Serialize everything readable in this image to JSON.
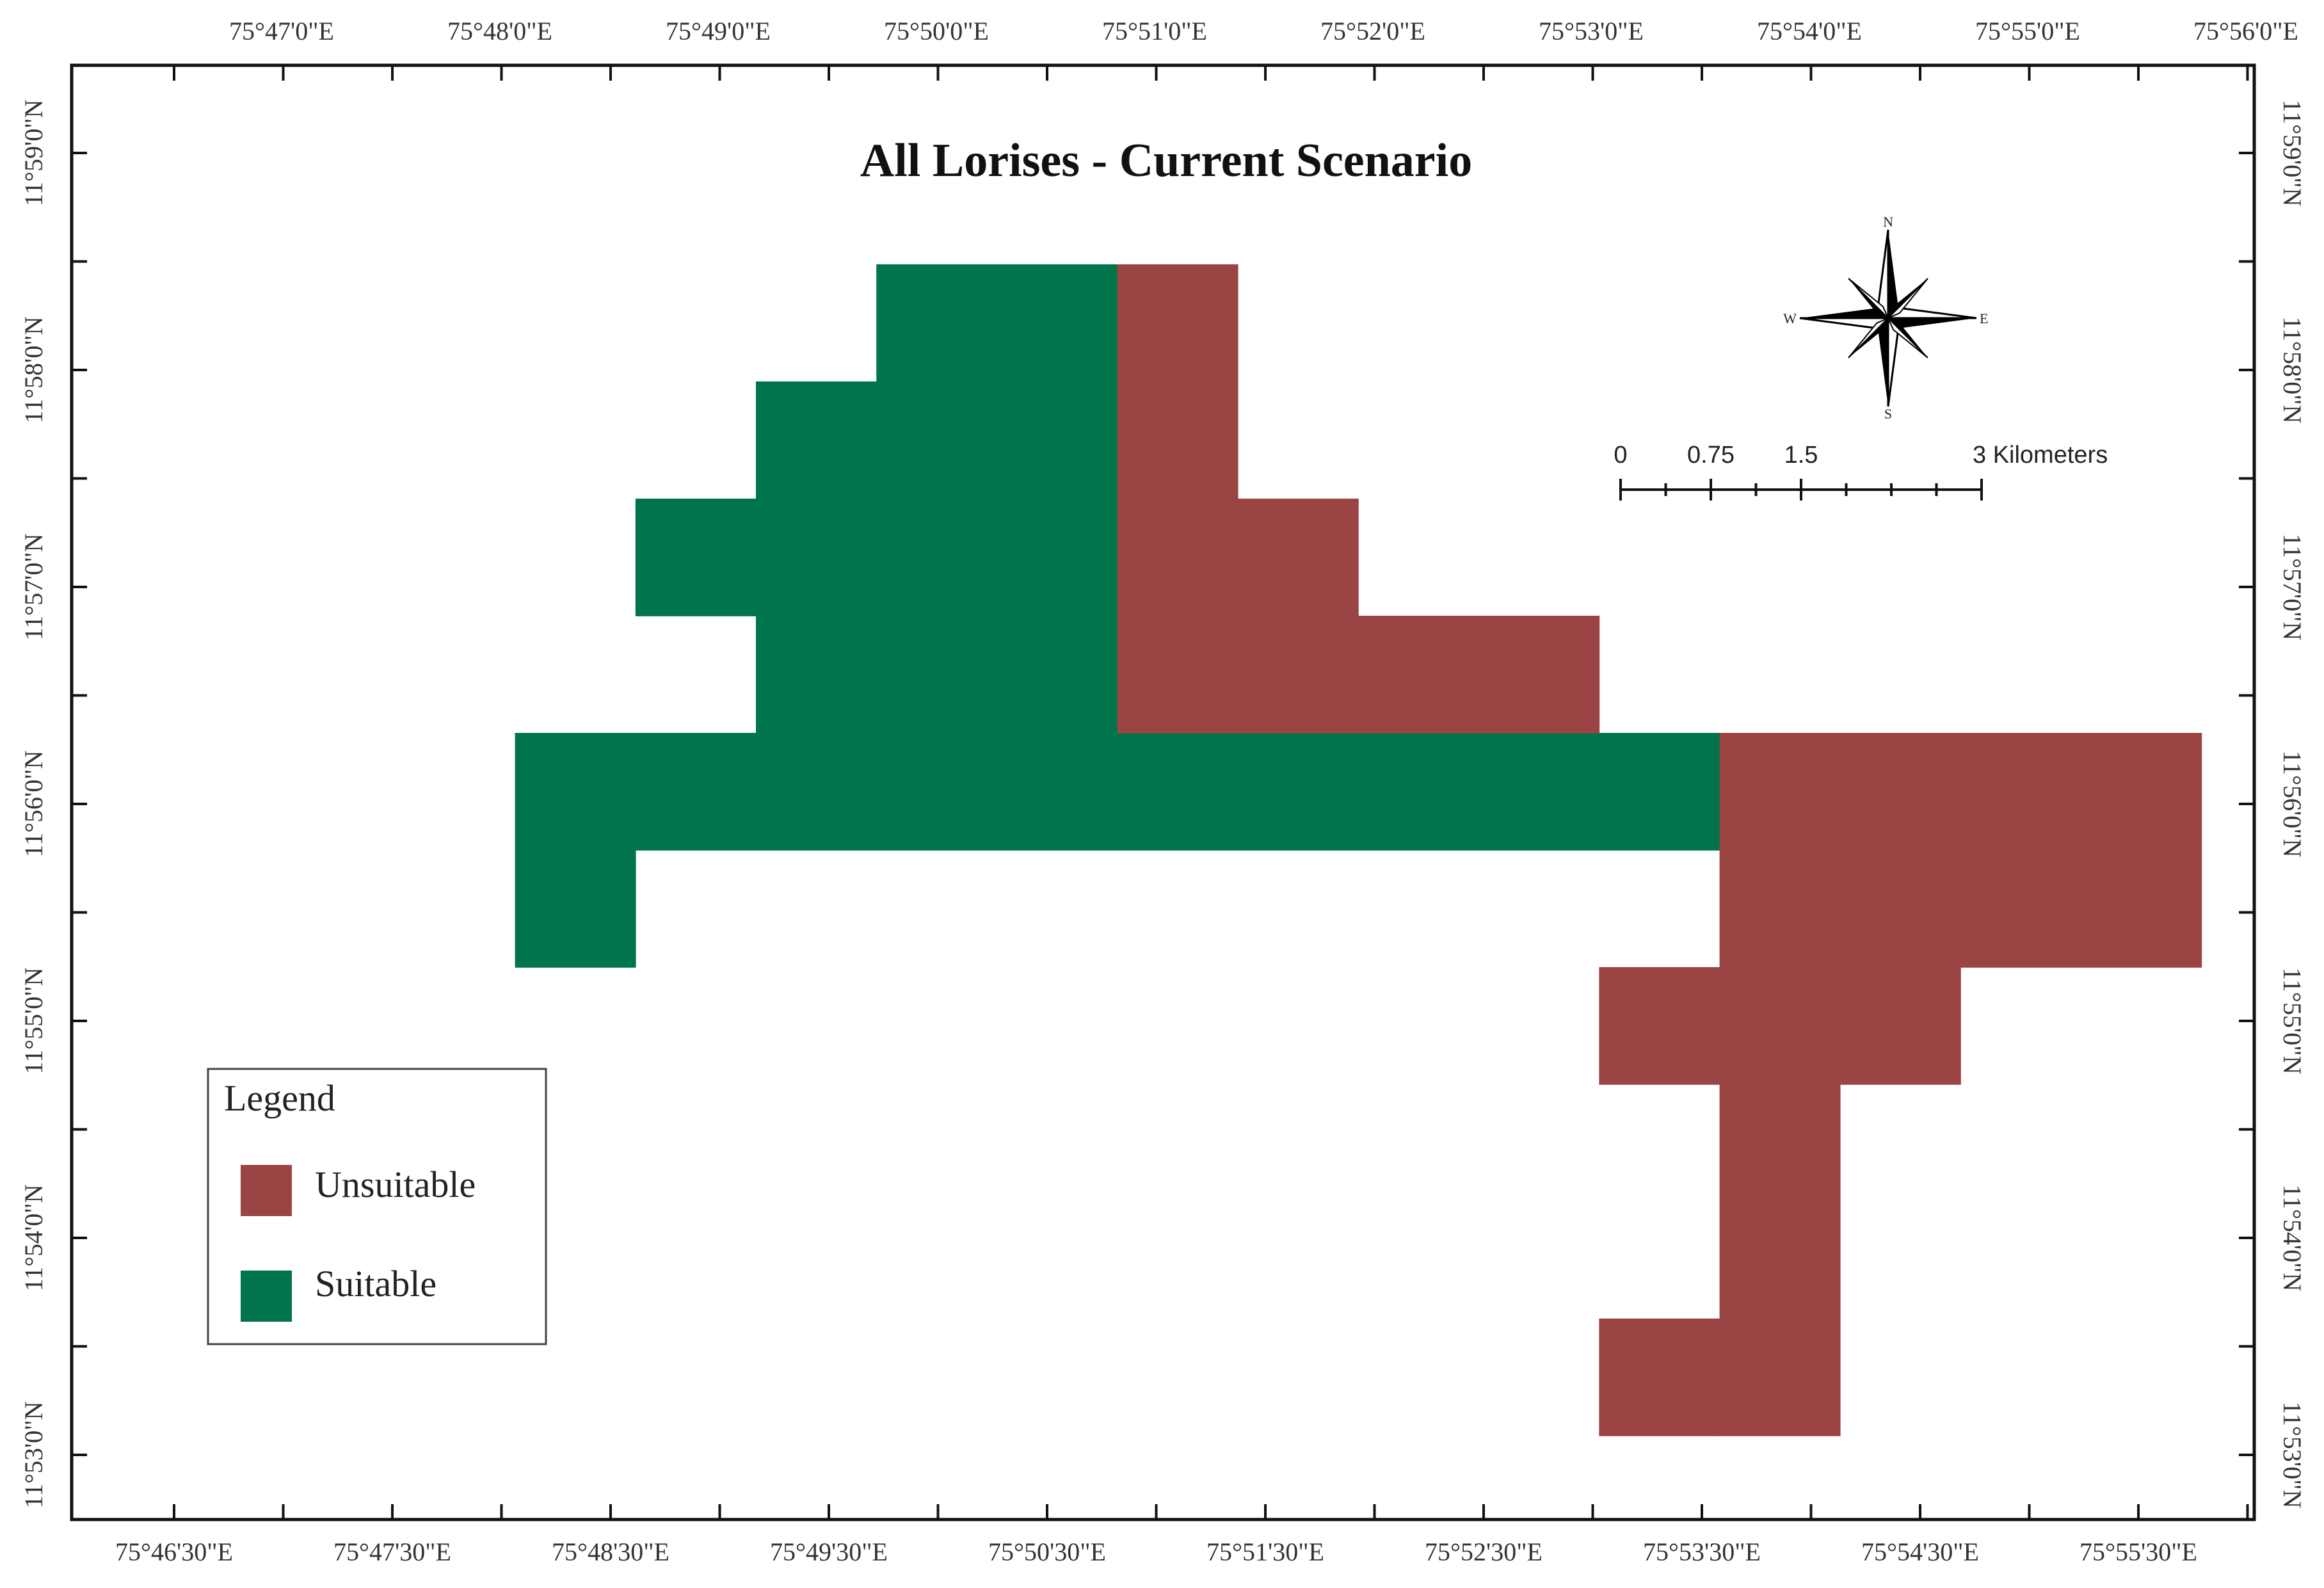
{
  "title": "All Lorises - Current Scenario",
  "colors": {
    "unsuitable": "#9a4543",
    "suitable": "#00744a",
    "frame": "#111111"
  },
  "top_labels": [
    "75°47'0\"E",
    "75°48'0\"E",
    "75°49'0\"E",
    "75°50'0\"E",
    "75°51'0\"E",
    "75°52'0\"E",
    "75°53'0\"E",
    "75°54'0\"E",
    "75°55'0\"E",
    "75°56'0\"E"
  ],
  "bottom_labels": [
    "75°46'30\"E",
    "75°47'30\"E",
    "75°48'30\"E",
    "75°49'30\"E",
    "75°50'30\"E",
    "75°51'30\"E",
    "75°52'30\"E",
    "75°53'30\"E",
    "75°54'30\"E",
    "75°55'30\"E"
  ],
  "lat_labels": [
    "11°59'0\"N",
    "11°58'0\"N",
    "11°57'0\"N",
    "11°56'0\"N",
    "11°55'0\"N",
    "11°54'0\"N",
    "11°53'0\"N"
  ],
  "legend": {
    "title": "Legend",
    "items": [
      {
        "label": "Unsuitable",
        "class": "unsuitable"
      },
      {
        "label": "Suitable",
        "class": "suitable"
      }
    ]
  },
  "scale_bar": {
    "labels": [
      "0",
      "0.75",
      "1.5",
      "3 Kilometers"
    ]
  },
  "compass": {
    "n": "N",
    "s": "S",
    "e": "E",
    "w": "W"
  },
  "grid_cells": {
    "cell_minutes": 0.55,
    "suitable": [
      {
        "row": 0,
        "cols": [
          6,
          7
        ]
      },
      {
        "row": 1,
        "cols": [
          5,
          6,
          7
        ]
      },
      {
        "row": 2,
        "cols": [
          4,
          5,
          6,
          7
        ]
      },
      {
        "row": 3,
        "cols": [
          5,
          6,
          7
        ]
      },
      {
        "row": 4,
        "cols": [
          3,
          4,
          5,
          6,
          7,
          8,
          9,
          10,
          11,
          12
        ]
      },
      {
        "row": 5,
        "cols": [
          3
        ]
      }
    ],
    "unsuitable": [
      {
        "row": 0,
        "cols": [
          8
        ]
      },
      {
        "row": 1,
        "cols": [
          8
        ]
      },
      {
        "row": 2,
        "cols": [
          8,
          9
        ]
      },
      {
        "row": 3,
        "cols": [
          8,
          9,
          10,
          11
        ]
      },
      {
        "row": 4,
        "cols": [
          13,
          14,
          15,
          16
        ]
      },
      {
        "row": 5,
        "cols": [
          13,
          14,
          15,
          16
        ]
      },
      {
        "row": 6,
        "cols": [
          12,
          13,
          14
        ]
      },
      {
        "row": 7,
        "cols": [
          13
        ]
      },
      {
        "row": 8,
        "cols": [
          13
        ]
      },
      {
        "row": 9,
        "cols": [
          12,
          13
        ]
      }
    ]
  }
}
